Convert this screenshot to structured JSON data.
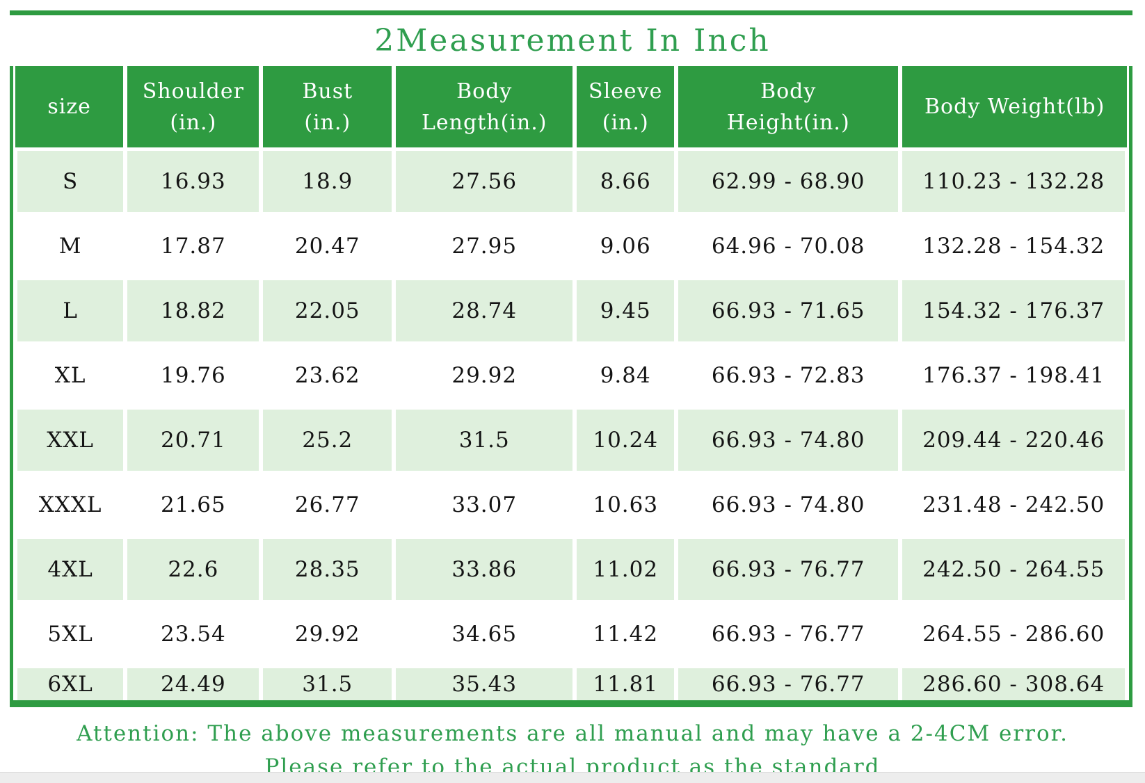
{
  "title": "2Measurement In Inch",
  "header_display": [
    "size",
    "Shoulder\n(in.)",
    "Bust\n(in.)",
    "Body\nLength(in.)",
    "Sleeve\n(in.)",
    "Body\nHeight(in.)",
    "Body Weight(lb)"
  ],
  "chart_data": {
    "type": "table",
    "title": "2Measurement In Inch",
    "columns": [
      "size",
      "Shoulder (in.)",
      "Bust (in.)",
      "Body Length(in.)",
      "Sleeve (in.)",
      "Body Height(in.)",
      "Body Weight(lb)"
    ],
    "rows": [
      [
        "S",
        "16.93",
        "18.9",
        "27.56",
        "8.66",
        "62.99 - 68.90",
        "110.23 - 132.28"
      ],
      [
        "M",
        "17.87",
        "20.47",
        "27.95",
        "9.06",
        "64.96 - 70.08",
        "132.28 - 154.32"
      ],
      [
        "L",
        "18.82",
        "22.05",
        "28.74",
        "9.45",
        "66.93 - 71.65",
        "154.32 - 176.37"
      ],
      [
        "XL",
        "19.76",
        "23.62",
        "29.92",
        "9.84",
        "66.93 - 72.83",
        "176.37 - 198.41"
      ],
      [
        "XXL",
        "20.71",
        "25.2",
        "31.5",
        "10.24",
        "66.93 - 74.80",
        "209.44 - 220.46"
      ],
      [
        "XXXL",
        "21.65",
        "26.77",
        "33.07",
        "10.63",
        "66.93 - 74.80",
        "231.48 - 242.50"
      ],
      [
        "4XL",
        "22.6",
        "28.35",
        "33.86",
        "11.02",
        "66.93 - 76.77",
        "242.50 - 264.55"
      ],
      [
        "5XL",
        "23.54",
        "29.92",
        "34.65",
        "11.42",
        "66.93 - 76.77",
        "264.55 - 286.60"
      ],
      [
        "6XL",
        "24.49",
        "31.5",
        "35.43",
        "11.81",
        "66.93 - 76.77",
        "286.60 - 308.64"
      ]
    ]
  },
  "footer": {
    "line1": "Attention: The above measurements are all manual and may have a 2-4CM error.",
    "line2": "Please refer to the actual product as the standard"
  },
  "colors": {
    "accent_green": "#2e9b41",
    "title_green": "#2f9e4f",
    "row_light_green": "#dff0dd",
    "text_dark": "#141414"
  }
}
